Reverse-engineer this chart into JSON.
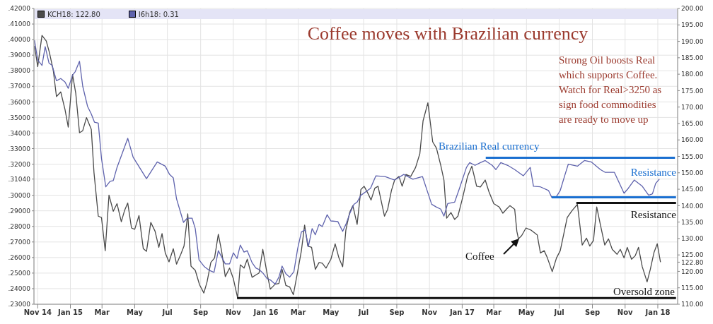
{
  "chart_data": {
    "type": "line",
    "title": "Coffee moves with Brazilian currency",
    "annotations": [
      "Strong Oil boosts Real\nwhich supports Coffee.\nWatch for Real>3250 as\nsign food commodities\nare ready to move up",
      "Brazilian Real currency",
      "Resistance",
      "Resistance",
      "Coffee",
      "Oversold zone"
    ],
    "xlim": [
      "2014-10-25",
      "2018-02-07"
    ],
    "xticks": [
      {
        "value": "2014-11-01",
        "label": "Nov 14"
      },
      {
        "value": "2015-01-01",
        "label": "Jan 15"
      },
      {
        "value": "2015-03-01",
        "label": "Mar"
      },
      {
        "value": "2015-05-01",
        "label": "May"
      },
      {
        "value": "2015-07-01",
        "label": "Jul"
      },
      {
        "value": "2015-09-01",
        "label": "Sep"
      },
      {
        "value": "2015-11-01",
        "label": "Nov"
      },
      {
        "value": "2016-01-01",
        "label": "Jan 16"
      },
      {
        "value": "2016-03-01",
        "label": "Mar"
      },
      {
        "value": "2016-05-01",
        "label": "May"
      },
      {
        "value": "2016-07-01",
        "label": "Jul"
      },
      {
        "value": "2016-09-01",
        "label": "Sep"
      },
      {
        "value": "2016-11-01",
        "label": "Nov"
      },
      {
        "value": "2017-01-01",
        "label": "Jan 17"
      },
      {
        "value": "2017-03-01",
        "label": "Mar"
      },
      {
        "value": "2017-05-01",
        "label": "May"
      },
      {
        "value": "2017-07-01",
        "label": "Jul"
      },
      {
        "value": "2017-09-01",
        "label": "Sep"
      },
      {
        "value": "2017-11-01",
        "label": "Nov"
      },
      {
        "value": "2018-01-01",
        "label": "Jan 18"
      }
    ],
    "ylim": [
      0.23,
      0.42
    ],
    "yticks": [
      {
        "value": 0.23,
        "label": ".23000"
      },
      {
        "value": 0.24,
        "label": ".24000"
      },
      {
        "value": 0.25,
        "label": ".25000"
      },
      {
        "value": 0.26,
        "label": ".26000"
      },
      {
        "value": 0.27,
        "label": ".27000"
      },
      {
        "value": 0.28,
        "label": ".28000"
      },
      {
        "value": 0.29,
        "label": ".29000"
      },
      {
        "value": 0.3,
        "label": ".30000"
      },
      {
        "value": 0.3104,
        "label": ".31040"
      },
      {
        "value": 0.32,
        "label": ".32000"
      },
      {
        "value": 0.33,
        "label": ".33000"
      },
      {
        "value": 0.34,
        "label": ".34000"
      },
      {
        "value": 0.35,
        "label": ".35000"
      },
      {
        "value": 0.36,
        "label": ".36000"
      },
      {
        "value": 0.37,
        "label": ".37000"
      },
      {
        "value": 0.38,
        "label": ".38000"
      },
      {
        "value": 0.39,
        "label": ".39000"
      },
      {
        "value": 0.4,
        "label": ".40000"
      },
      {
        "value": 0.41,
        "label": ".41000"
      },
      {
        "value": 0.42,
        "label": ".42000"
      }
    ],
    "y2lim": [
      110,
      200
    ],
    "y2ticks": [
      {
        "value": 110,
        "label": "110.00"
      },
      {
        "value": 115,
        "label": "115.00"
      },
      {
        "value": 120,
        "label": "120.00"
      },
      {
        "value": 122.8,
        "label": "122.80"
      },
      {
        "value": 125,
        "label": "125.00"
      },
      {
        "value": 130,
        "label": "130.00"
      },
      {
        "value": 135,
        "label": "135.00"
      },
      {
        "value": 140,
        "label": "140.00"
      },
      {
        "value": 145,
        "label": "145.00"
      },
      {
        "value": 150,
        "label": "150.00"
      },
      {
        "value": 155,
        "label": "155.00"
      },
      {
        "value": 160,
        "label": "160.00"
      },
      {
        "value": 165,
        "label": "165.00"
      },
      {
        "value": 170,
        "label": "170.00"
      },
      {
        "value": 175,
        "label": "175.00"
      },
      {
        "value": 180,
        "label": "180.00"
      },
      {
        "value": 185,
        "label": "185.00"
      },
      {
        "value": 190,
        "label": "190.00"
      },
      {
        "value": 195,
        "label": "195.00"
      },
      {
        "value": 200,
        "label": "200.00"
      }
    ],
    "grid": true,
    "legend": "top left",
    "marker": "none",
    "line_style": "solid",
    "series": [
      {
        "name": "KCH18: 122.80",
        "color": "#4a4a4a",
        "axis": "y2",
        "x": [
          "2014-10-26",
          "2014-11-01",
          "2014-11-09",
          "2014-11-17",
          "2014-11-23",
          "2014-11-30",
          "2014-12-06",
          "2014-12-14",
          "2014-12-22",
          "2014-12-28",
          "2015-01-05",
          "2015-01-11",
          "2015-01-18",
          "2015-01-24",
          "2015-01-31",
          "2015-02-09",
          "2015-02-14",
          "2015-02-22",
          "2015-02-28",
          "2015-03-07",
          "2015-03-14",
          "2015-03-22",
          "2015-03-29",
          "2015-04-06",
          "2015-04-12",
          "2015-04-18",
          "2015-04-25",
          "2015-05-01",
          "2015-05-09",
          "2015-05-17",
          "2015-05-23",
          "2015-05-31",
          "2015-06-08",
          "2015-06-15",
          "2015-06-21",
          "2015-06-27",
          "2015-07-04",
          "2015-07-12",
          "2015-07-18",
          "2015-07-26",
          "2015-08-01",
          "2015-08-08",
          "2015-08-14",
          "2015-08-22",
          "2015-08-30",
          "2015-09-07",
          "2015-09-13",
          "2015-09-20",
          "2015-09-27",
          "2015-10-04",
          "2015-10-10",
          "2015-10-17",
          "2015-10-25",
          "2015-11-01",
          "2015-11-09",
          "2015-11-14",
          "2015-11-21",
          "2015-11-27",
          "2015-12-06",
          "2015-12-13",
          "2015-12-19",
          "2015-12-26",
          "2016-01-03",
          "2016-01-09",
          "2016-01-18",
          "2016-01-25",
          "2016-01-31",
          "2016-02-07",
          "2016-02-14",
          "2016-02-21",
          "2016-02-29",
          "2016-03-07",
          "2016-03-13",
          "2016-03-19",
          "2016-03-26",
          "2016-04-02",
          "2016-04-09",
          "2016-04-15",
          "2016-04-22",
          "2016-05-01",
          "2016-05-09",
          "2016-05-16",
          "2016-05-23",
          "2016-05-29",
          "2016-06-05",
          "2016-06-11",
          "2016-06-19",
          "2016-06-26",
          "2016-07-02",
          "2016-07-09",
          "2016-07-15",
          "2016-07-22",
          "2016-07-28",
          "2016-08-09",
          "2016-08-15",
          "2016-08-22",
          "2016-08-28",
          "2016-09-05",
          "2016-09-11",
          "2016-09-18",
          "2016-09-27",
          "2016-10-06",
          "2016-10-14",
          "2016-10-20",
          "2016-10-29",
          "2016-11-07",
          "2016-11-14",
          "2016-11-22",
          "2016-11-28",
          "2016-12-03",
          "2016-12-11",
          "2016-12-18",
          "2016-12-24",
          "2017-01-02",
          "2017-01-11",
          "2017-01-19",
          "2017-01-28",
          "2017-02-04",
          "2017-02-13",
          "2017-02-20",
          "2017-03-01",
          "2017-03-11",
          "2017-03-18",
          "2017-03-25",
          "2017-03-31",
          "2017-04-09",
          "2017-04-13",
          "2017-04-16",
          "2017-04-22",
          "2017-04-30",
          "2017-05-09",
          "2017-05-21",
          "2017-05-27",
          "2017-06-03",
          "2017-06-09",
          "2017-06-18",
          "2017-06-26",
          "2017-07-03",
          "2017-07-16",
          "2017-07-25",
          "2017-08-04",
          "2017-08-13",
          "2017-08-21",
          "2017-08-27",
          "2017-09-03",
          "2017-09-09",
          "2017-09-16",
          "2017-09-24",
          "2017-10-01",
          "2017-10-08",
          "2017-10-17",
          "2017-10-23",
          "2017-10-30",
          "2017-11-05",
          "2017-11-13",
          "2017-11-20",
          "2017-11-26",
          "2017-12-03",
          "2017-12-12",
          "2017-12-18",
          "2017-12-25",
          "2017-12-31",
          "2018-01-06"
        ],
        "values": [
          188.6,
          182.3,
          191.8,
          190.1,
          186.5,
          181.2,
          173.2,
          174.6,
          169.2,
          163.9,
          179.9,
          174.2,
          162.2,
          162.8,
          166.8,
          163.2,
          150.1,
          136.8,
          136.4,
          126.3,
          143.2,
          138.3,
          140.6,
          135.1,
          138.5,
          140.8,
          133.2,
          132.8,
          137.0,
          126.9,
          126.1,
          134.9,
          132.2,
          127.3,
          131.5,
          125.6,
          122.9,
          126.9,
          122.2,
          125.2,
          127.7,
          137.5,
          121.6,
          120.3,
          115.9,
          113.4,
          116.8,
          122.7,
          124.1,
          131.3,
          126.3,
          118.4,
          121.0,
          117.8,
          111.9,
          122.0,
          121.0,
          123.7,
          118.2,
          118.9,
          119.5,
          126.7,
          119.3,
          114.6,
          116.1,
          116.3,
          120.6,
          115.7,
          115.3,
          112.9,
          119.9,
          126.3,
          134.1,
          127.7,
          127.3,
          120.6,
          122.7,
          122.5,
          121.0,
          123.7,
          128.4,
          124.1,
          121.4,
          132.6,
          137.9,
          140.0,
          134.3,
          144.9,
          145.9,
          143.8,
          141.7,
          145.3,
          145.9,
          136.8,
          138.9,
          144.6,
          147.8,
          148.9,
          145.9,
          149.5,
          148.9,
          151.6,
          155.8,
          165.8,
          171.3,
          159.4,
          157.5,
          152.3,
          147.8,
          136.2,
          137.9,
          135.8,
          136.8,
          142.5,
          148.9,
          152.0,
          145.9,
          145.7,
          147.8,
          144.2,
          140.6,
          139.6,
          137.7,
          139.0,
          140.0,
          138.9,
          132.2,
          129.9,
          130.9,
          133.2,
          132.6,
          131.1,
          125.6,
          126.3,
          124.1,
          119.9,
          124.1,
          126.3,
          136.4,
          138.5,
          140.4,
          128.0,
          130.1,
          127.7,
          129.4,
          139.6,
          134.1,
          128.0,
          129.9,
          126.7,
          125.2,
          126.7,
          124.1,
          127.3,
          123.7,
          124.8,
          127.3,
          121.4,
          116.8,
          120.6,
          125.8,
          128.4,
          122.8
        ]
      },
      {
        "name": "I6h18: 0.31",
        "color": "#5f63ad",
        "x": [
          "2014-10-26",
          "2014-11-01",
          "2014-11-09",
          "2014-11-15",
          "2014-11-22",
          "2014-11-28",
          "2014-12-06",
          "2014-12-14",
          "2014-12-22",
          "2014-12-28",
          "2015-01-05",
          "2015-01-10",
          "2015-01-18",
          "2015-01-24",
          "2015-02-02",
          "2015-02-09",
          "2015-02-15",
          "2015-02-22",
          "2015-02-28",
          "2015-03-08",
          "2015-03-16",
          "2015-03-22",
          "2015-03-29",
          "2015-04-18",
          "2015-04-28",
          "2015-05-23",
          "2015-06-12",
          "2015-06-27",
          "2015-07-05",
          "2015-07-12",
          "2015-07-18",
          "2015-07-31",
          "2015-08-07",
          "2015-08-16",
          "2015-08-22",
          "2015-08-29",
          "2015-09-08",
          "2015-09-17",
          "2015-09-26",
          "2015-10-04",
          "2015-10-17",
          "2015-10-25",
          "2015-11-01",
          "2015-11-08",
          "2015-11-14",
          "2015-11-21",
          "2015-11-27",
          "2015-12-06",
          "2015-12-13",
          "2015-12-19",
          "2015-12-26",
          "2016-01-03",
          "2016-01-09",
          "2016-01-18",
          "2016-01-25",
          "2016-01-31",
          "2016-02-07",
          "2016-02-14",
          "2016-02-22",
          "2016-02-29",
          "2016-03-07",
          "2016-03-14",
          "2016-03-20",
          "2016-03-27",
          "2016-04-02",
          "2016-04-09",
          "2016-04-15",
          "2016-04-24",
          "2016-05-01",
          "2016-05-14",
          "2016-05-23",
          "2016-05-29",
          "2016-06-06",
          "2016-06-13",
          "2016-06-19",
          "2016-06-26",
          "2016-07-05",
          "2016-07-14",
          "2016-07-24",
          "2016-08-10",
          "2016-08-28",
          "2016-09-14",
          "2016-10-01",
          "2016-10-19",
          "2016-11-05",
          "2016-11-14",
          "2016-11-22",
          "2016-11-28",
          "2016-12-05",
          "2016-12-18",
          "2016-12-27",
          "2017-01-09",
          "2017-01-15",
          "2017-01-25",
          "2017-02-04",
          "2017-02-13",
          "2017-02-26",
          "2017-03-05",
          "2017-03-14",
          "2017-03-27",
          "2017-04-09",
          "2017-04-25",
          "2017-05-08",
          "2017-05-14",
          "2017-05-27",
          "2017-06-11",
          "2017-06-17",
          "2017-06-26",
          "2017-07-03",
          "2017-07-12",
          "2017-07-18",
          "2017-08-04",
          "2017-08-17",
          "2017-08-30",
          "2017-09-16",
          "2017-09-25",
          "2017-10-12",
          "2017-10-30",
          "2017-11-07",
          "2017-11-18",
          "2017-12-03",
          "2017-12-15",
          "2017-12-22",
          "2017-12-28",
          "2018-01-04"
        ],
        "values": [
          0.3995,
          0.387,
          0.3834,
          0.3955,
          0.385,
          0.3834,
          0.3736,
          0.375,
          0.3727,
          0.3687,
          0.3772,
          0.3794,
          0.3861,
          0.37,
          0.3571,
          0.3522,
          0.3469,
          0.3464,
          0.3237,
          0.3054,
          0.309,
          0.3094,
          0.3179,
          0.3366,
          0.3245,
          0.3107,
          0.3214,
          0.3187,
          0.3134,
          0.3112,
          0.2978,
          0.2826,
          0.2853,
          0.2853,
          0.2786,
          0.2585,
          0.2541,
          0.2518,
          0.2505,
          0.2644,
          0.2559,
          0.2559,
          0.263,
          0.2594,
          0.268,
          0.2635,
          0.2644,
          0.2567,
          0.2533,
          0.2523,
          0.2501,
          0.2465,
          0.2456,
          0.2429,
          0.2474,
          0.2545,
          0.2496,
          0.2474,
          0.2509,
          0.2657,
          0.2764,
          0.2778,
          0.267,
          0.2786,
          0.2746,
          0.2813,
          0.2799,
          0.2875,
          0.2835,
          0.2831,
          0.2768,
          0.2813,
          0.2889,
          0.2942,
          0.2956,
          0.3,
          0.3022,
          0.3045,
          0.3125,
          0.312,
          0.3098,
          0.3134,
          0.3103,
          0.312,
          0.2942,
          0.2924,
          0.2911,
          0.2866,
          0.2947,
          0.2956,
          0.3045,
          0.3179,
          0.321,
          0.3192,
          0.321,
          0.3223,
          0.3192,
          0.3165,
          0.321,
          0.3192,
          0.3165,
          0.3125,
          0.3179,
          0.3058,
          0.3054,
          0.3031,
          0.2987,
          0.2992,
          0.3031,
          0.3134,
          0.32,
          0.3187,
          0.3223,
          0.3214,
          0.3165,
          0.3147,
          0.3147,
          0.3013,
          0.3045,
          0.3098,
          0.3058,
          0.3,
          0.3009,
          0.3076,
          0.3104
        ]
      },
      {
        "color": "#1a6fd0",
        "x": [
          "2017-02-14",
          "2018-02-02"
        ],
        "values": [
          0.3241,
          0.3241
        ]
      },
      {
        "color": "#1a6fd0",
        "x": [
          "2017-06-17",
          "2018-02-04"
        ],
        "values": [
          0.2987,
          0.2987
        ]
      },
      {
        "color": "#111111",
        "axis": "y2",
        "x": [
          "2017-08-02",
          "2018-02-04"
        ],
        "values": [
          140.8,
          140.8
        ]
      },
      {
        "color": "#111111",
        "axis": "y2",
        "x": [
          "2015-11-08",
          "2018-02-04"
        ],
        "values": [
          111.9,
          111.9
        ]
      }
    ]
  }
}
